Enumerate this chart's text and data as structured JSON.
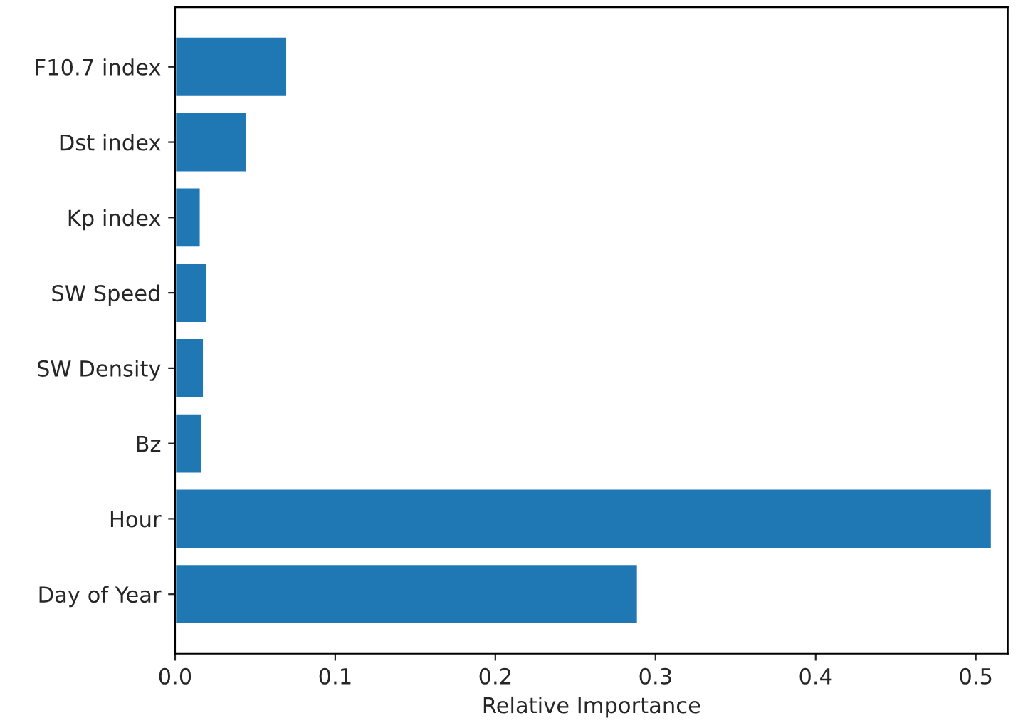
{
  "chart_data": {
    "type": "bar",
    "orientation": "horizontal",
    "xlabel": "Relative Importance",
    "categories": [
      "F10.7 index",
      "Dst index",
      "Kp index",
      "SW Speed",
      "SW Density",
      "Bz",
      "Hour",
      "Day of Year"
    ],
    "values": [
      0.07,
      0.045,
      0.016,
      0.02,
      0.018,
      0.017,
      0.51,
      0.289
    ],
    "color": "#1f77b4",
    "xlim": [
      0,
      0.52
    ],
    "xticks": [
      {
        "value": 0,
        "label": "0.0"
      },
      0.1,
      0.2,
      0.3,
      0.4,
      0.5
    ],
    "grid": false
  }
}
